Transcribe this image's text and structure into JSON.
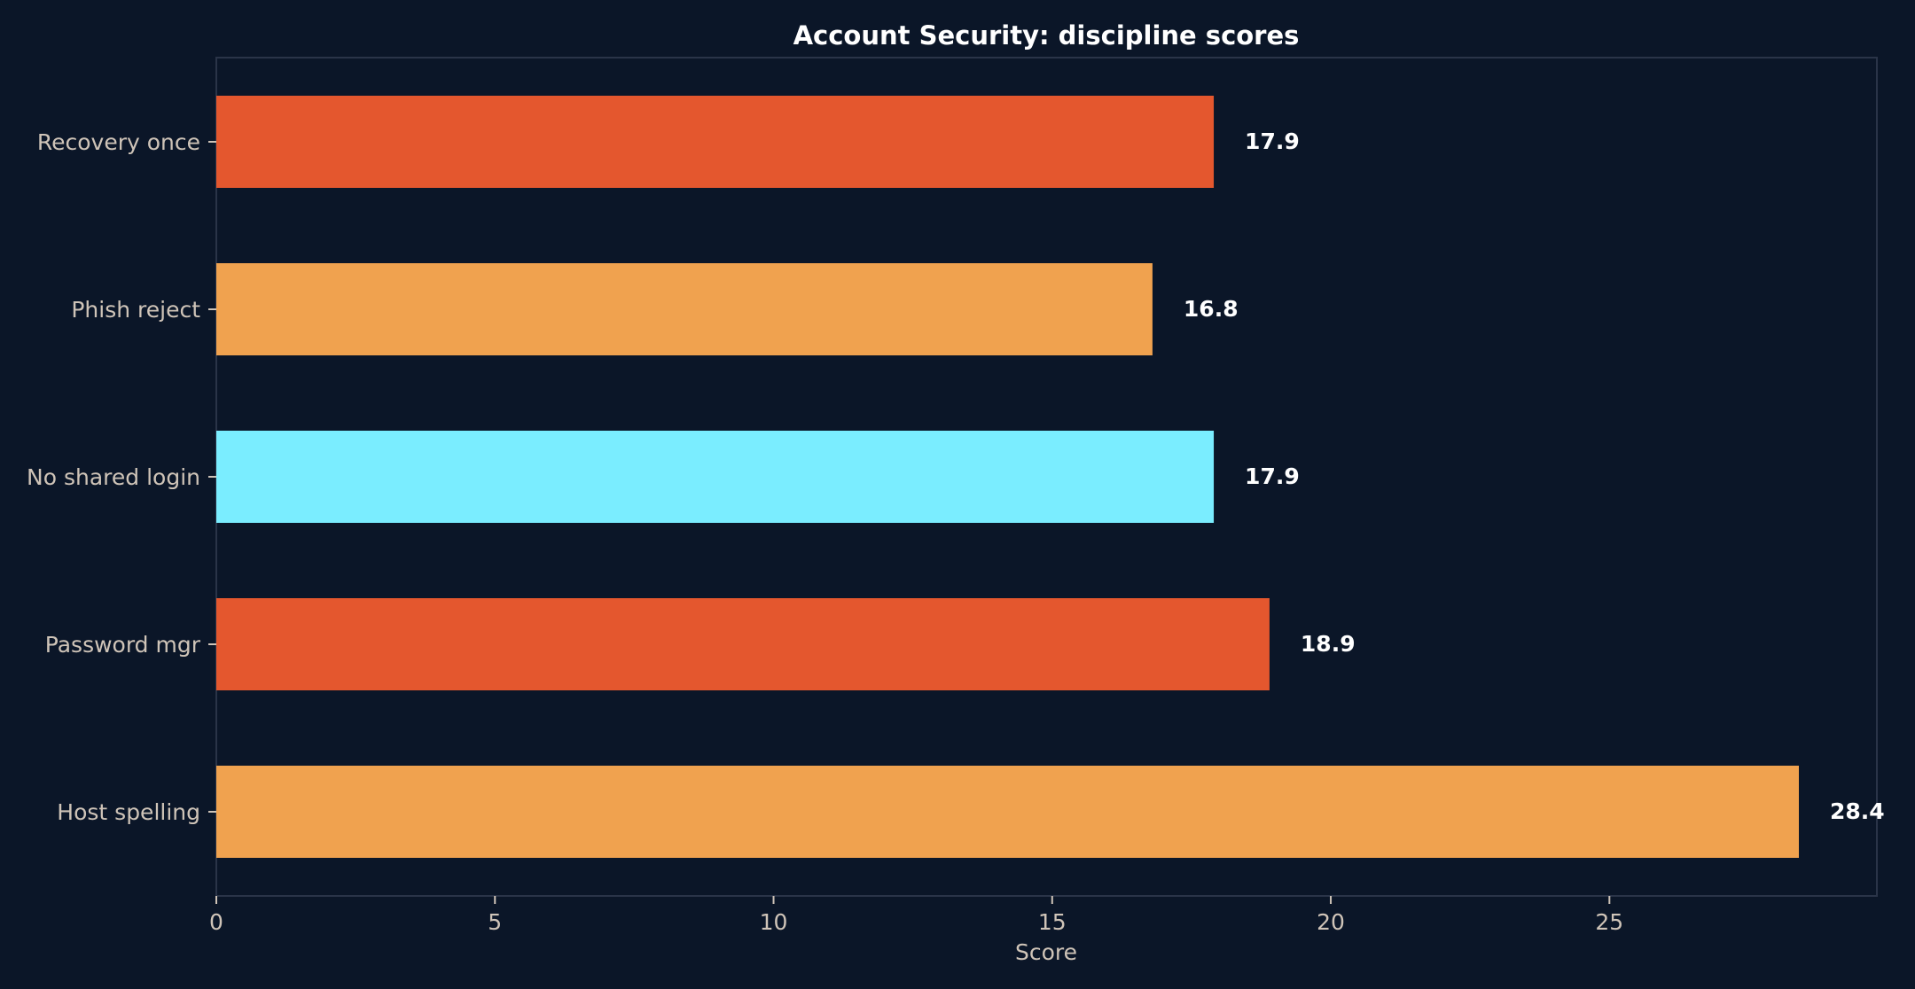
{
  "chart_data": {
    "type": "bar",
    "orientation": "horizontal",
    "title": "Account Security: discipline scores",
    "xlabel": "Score",
    "ylabel": "",
    "categories": [
      "Recovery once",
      "Phish reject",
      "No shared login",
      "Password mgr",
      "Host spelling"
    ],
    "values": [
      17.9,
      16.8,
      17.9,
      18.9,
      28.4
    ],
    "value_labels": [
      "17.9",
      "16.8",
      "17.9",
      "18.9",
      "28.4"
    ],
    "bar_colors": [
      "#e4572e",
      "#f0a24f",
      "#7aedff",
      "#e4572e",
      "#f0a24f"
    ],
    "xlim": [
      0,
      29.8
    ],
    "xticks": [
      0,
      5,
      10,
      15,
      20,
      25
    ],
    "xtick_labels": [
      "0",
      "5",
      "10",
      "15",
      "20",
      "25"
    ],
    "grid": false,
    "legend": "none"
  },
  "colors": {
    "background": "#0b1628",
    "frame": "#2a3448",
    "text_muted": "#cfc4b8",
    "text_strong": "#ffffff"
  }
}
